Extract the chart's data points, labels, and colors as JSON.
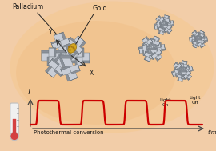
{
  "bg_color": "#f2cda8",
  "glow_color": "#f0c898",
  "arm_light": "#c8cdd6",
  "arm_mid": "#adb3be",
  "arm_dark": "#8a9099",
  "edge_color": "#70787f",
  "gold_fill": "#d4a418",
  "gold_edge": "#a07810",
  "curve_color": "#cc0000",
  "axis_color": "#444444",
  "text_color": "#111111",
  "palladium_label": "Palladium",
  "gold_label": "Gold",
  "xlabel": "Photothermal conversion",
  "xlabel2": "time",
  "ylabel": "T",
  "light_on_text": "Light\nOn",
  "light_off_text": "Light\nOff"
}
